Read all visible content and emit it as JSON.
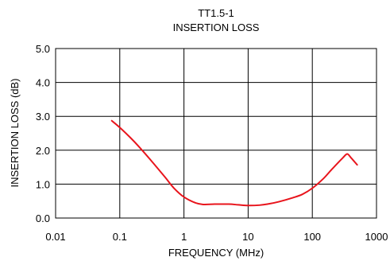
{
  "chart_data": {
    "type": "line",
    "title": "TT1.5-1",
    "subtitle": "INSERTION LOSS",
    "xlabel": "FREQUENCY (MHz)",
    "ylabel": "INSERTION LOSS (dB)",
    "x_scale": "log",
    "xlim": [
      0.01,
      1000
    ],
    "ylim": [
      0,
      5
    ],
    "grid": true,
    "x_ticks": [
      0.01,
      0.1,
      1,
      10,
      100,
      1000
    ],
    "x_tick_labels": [
      "0.01",
      "0.1",
      "1",
      "10",
      "100",
      "1000"
    ],
    "y_ticks": [
      0,
      1,
      2,
      3,
      4,
      5
    ],
    "y_tick_labels": [
      "0.0",
      "1.0",
      "2.0",
      "3.0",
      "4.0",
      "5.0"
    ],
    "series": [
      {
        "color": "#e8141c",
        "x": [
          0.075,
          0.1,
          0.15,
          0.2,
          0.3,
          0.5,
          0.7,
          1.0,
          1.5,
          2,
          3,
          5,
          7,
          10,
          15,
          20,
          30,
          50,
          70,
          100,
          150,
          200,
          300,
          350,
          400,
          500
        ],
        "y": [
          2.87,
          2.67,
          2.35,
          2.1,
          1.72,
          1.22,
          0.88,
          0.62,
          0.45,
          0.4,
          0.41,
          0.41,
          0.39,
          0.37,
          0.38,
          0.41,
          0.48,
          0.6,
          0.7,
          0.88,
          1.17,
          1.43,
          1.78,
          1.89,
          1.78,
          1.57
        ]
      }
    ]
  }
}
